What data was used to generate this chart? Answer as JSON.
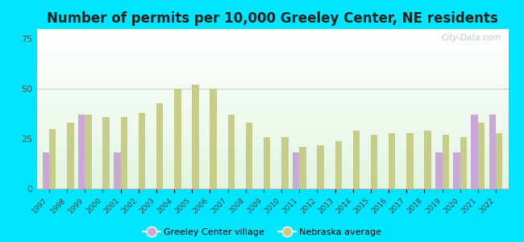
{
  "title": "Number of permits per 10,000 Greeley Center, NE residents",
  "years": [
    1997,
    1998,
    1999,
    2000,
    2001,
    2002,
    2003,
    2004,
    2005,
    2006,
    2007,
    2008,
    2009,
    2010,
    2011,
    2012,
    2013,
    2014,
    2015,
    2016,
    2017,
    2018,
    2019,
    2020,
    2021,
    2022
  ],
  "greeley": [
    18,
    0,
    37,
    0,
    18,
    0,
    0,
    0,
    0,
    0,
    0,
    0,
    0,
    0,
    18,
    0,
    0,
    0,
    0,
    0,
    0,
    0,
    18,
    18,
    37,
    37
  ],
  "nebraska": [
    30,
    33,
    37,
    36,
    36,
    38,
    43,
    50,
    52,
    50,
    37,
    33,
    26,
    26,
    21,
    22,
    24,
    29,
    27,
    28,
    28,
    29,
    27,
    26,
    33,
    28
  ],
  "greeley_color": "#c9a8d4",
  "nebraska_color": "#c8cc8a",
  "plot_bg_color": "#e8f4e8",
  "outer_bg": "#00e5ff",
  "ylim": [
    0,
    80
  ],
  "yticks": [
    0,
    25,
    50,
    75
  ],
  "bar_width": 0.38,
  "title_fontsize": 12,
  "watermark": "City-Data.com"
}
